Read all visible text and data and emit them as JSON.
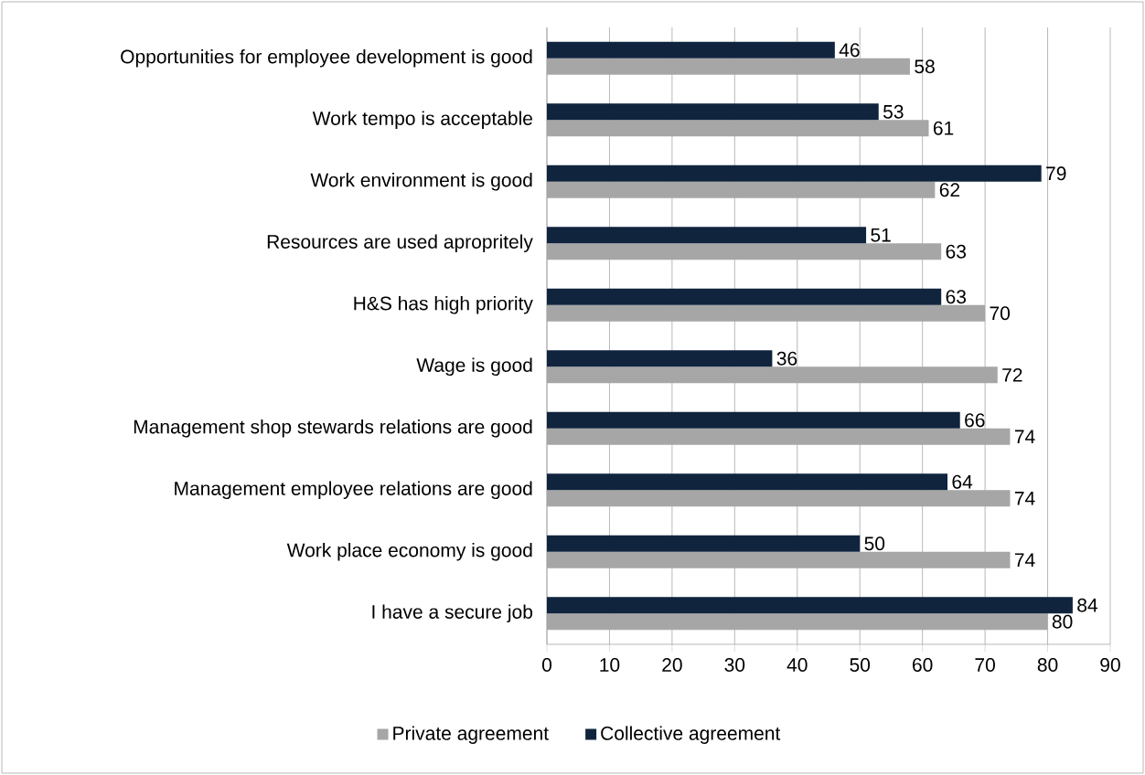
{
  "chart_data": {
    "type": "bar",
    "orientation": "horizontal",
    "categories": [
      "Opportunities for employee development is good",
      "Work tempo is acceptable",
      "Work environment is good",
      "Resources are used apropritely",
      "H&S has high priority",
      "Wage is good",
      "Management shop stewards relations are good",
      "Management employee relations are good",
      "Work place economy is good",
      "I have a secure job"
    ],
    "series": [
      {
        "name": "Private agreement",
        "color": "#a6a6a6",
        "values": [
          58,
          61,
          62,
          63,
          70,
          72,
          74,
          74,
          74,
          80
        ]
      },
      {
        "name": "Collective agreement",
        "color": "#10243e",
        "values": [
          46,
          53,
          79,
          51,
          63,
          36,
          66,
          64,
          50,
          84
        ]
      }
    ],
    "xlim": [
      0,
      90
    ],
    "xticks": [
      0,
      10,
      20,
      30,
      40,
      50,
      60,
      70,
      80,
      90
    ],
    "grid": "x",
    "legend": "bottom",
    "data_labels": true
  }
}
